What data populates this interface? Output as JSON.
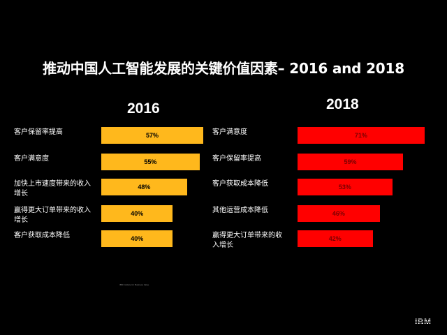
{
  "title": "推动中国人工智能发展的关键价值因素– 2016 and 2018",
  "footnote": "IBM Institute for Business Value",
  "logo": "IBM",
  "colors": {
    "left_bar": "#FFB81C",
    "right_bar": "#FF0000",
    "left_label": "#000000",
    "right_label": "#7A0000",
    "background": "#000000"
  },
  "chart_data": [
    {
      "type": "bar",
      "orientation": "horizontal",
      "title": "2016",
      "categories": [
        "客户保留率提高",
        "客户满意度",
        "加快上市速度带来的收入\n增长",
        "赢得更大订单带来的收入\n增长",
        "客户获取成本降低"
      ],
      "values": [
        57,
        55,
        48,
        40,
        40
      ],
      "labels": [
        "57%",
        "55%",
        "48%",
        "40%",
        "40%"
      ],
      "unit": "%"
    },
    {
      "type": "bar",
      "orientation": "horizontal",
      "title": "2018",
      "categories": [
        "客户满意度",
        "客户保留率提高",
        "客户获取成本降低",
        "其他运营成本降低",
        "赢得更大订单带来的收\n入增长"
      ],
      "values": [
        71,
        59,
        53,
        46,
        42
      ],
      "labels": [
        "71%",
        "59%",
        "53%",
        "46%",
        "42%"
      ],
      "unit": "%"
    }
  ]
}
